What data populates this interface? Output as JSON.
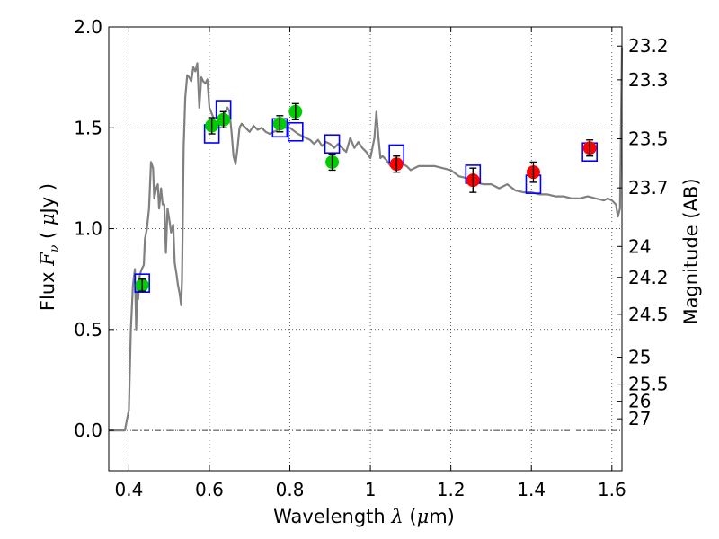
{
  "chart_data": {
    "type": "scatter",
    "xlabel": {
      "prefix": "Wavelength  ",
      "symbol": "λ",
      "unit_open": " (",
      "unit_mu": "μ",
      "unit_close": "m)"
    },
    "ylabel": {
      "prefix": "Flux  ",
      "symbol_f": "F",
      "symbol_sub": "ν",
      "unit_open": "  ( ",
      "unit_mu": "μ",
      "unit_close": "Jy )"
    },
    "y2label": "Magnitude (AB)",
    "xlim": [
      0.35,
      1.625
    ],
    "ylim": [
      -0.2,
      2.0
    ],
    "grid": true,
    "x_ticks": [
      {
        "value": 0.4,
        "label": "0.4"
      },
      {
        "value": 0.6,
        "label": "0.6"
      },
      {
        "value": 0.8,
        "label": "0.8"
      },
      {
        "value": 1.0,
        "label": "1"
      },
      {
        "value": 1.2,
        "label": "1.2"
      },
      {
        "value": 1.4,
        "label": "1.4"
      },
      {
        "value": 1.6,
        "label": "1.6"
      }
    ],
    "y_ticks": [
      {
        "value": 0.0,
        "label": "0.0"
      },
      {
        "value": 0.5,
        "label": "0.5"
      },
      {
        "value": 1.0,
        "label": "1.0"
      },
      {
        "value": 1.5,
        "label": "1.5"
      },
      {
        "value": 2.0,
        "label": "2.0"
      }
    ],
    "mag_ticks": [
      {
        "mag": 23.2,
        "label": "23.2"
      },
      {
        "mag": 23.3,
        "label": "23.3"
      },
      {
        "mag": 23.5,
        "label": "23.5"
      },
      {
        "mag": 23.7,
        "label": "23.7"
      },
      {
        "mag": 24.0,
        "label": "24"
      },
      {
        "mag": 24.2,
        "label": "24.2"
      },
      {
        "mag": 24.5,
        "label": "24.5"
      },
      {
        "mag": 25.0,
        "label": "25"
      },
      {
        "mag": 25.5,
        "label": "25.5"
      },
      {
        "mag": 26.0,
        "label": "26"
      },
      {
        "mag": 27.0,
        "label": "27"
      }
    ],
    "model_spectrum": {
      "color": "#808080",
      "x": [
        0.35,
        0.39,
        0.4,
        0.405,
        0.41,
        0.415,
        0.418,
        0.421,
        0.423,
        0.427,
        0.432,
        0.437,
        0.44,
        0.445,
        0.45,
        0.455,
        0.46,
        0.463,
        0.468,
        0.472,
        0.475,
        0.48,
        0.484,
        0.488,
        0.492,
        0.496,
        0.5,
        0.505,
        0.51,
        0.514,
        0.518,
        0.522,
        0.526,
        0.53,
        0.532,
        0.534,
        0.536,
        0.54,
        0.545,
        0.55,
        0.555,
        0.56,
        0.565,
        0.57,
        0.575,
        0.58,
        0.585,
        0.59,
        0.595,
        0.6,
        0.61,
        0.62,
        0.63,
        0.64,
        0.645,
        0.65,
        0.655,
        0.66,
        0.665,
        0.67,
        0.675,
        0.68,
        0.69,
        0.7,
        0.71,
        0.72,
        0.73,
        0.74,
        0.75,
        0.76,
        0.78,
        0.8,
        0.82,
        0.84,
        0.85,
        0.86,
        0.87,
        0.88,
        0.89,
        0.9,
        0.91,
        0.92,
        0.93,
        0.94,
        0.95,
        0.96,
        0.97,
        0.98,
        0.99,
        1.0,
        1.01,
        1.015,
        1.02,
        1.025,
        1.03,
        1.04,
        1.05,
        1.06,
        1.07,
        1.08,
        1.09,
        1.1,
        1.12,
        1.14,
        1.16,
        1.18,
        1.2,
        1.22,
        1.24,
        1.26,
        1.28,
        1.3,
        1.32,
        1.34,
        1.36,
        1.38,
        1.4,
        1.42,
        1.44,
        1.46,
        1.48,
        1.5,
        1.52,
        1.54,
        1.56,
        1.58,
        1.59,
        1.6,
        1.61,
        1.615,
        1.62,
        1.625
      ],
      "y": [
        0.0,
        0.0,
        0.1,
        0.5,
        0.72,
        0.8,
        0.5,
        0.72,
        0.65,
        0.77,
        0.8,
        0.82,
        0.95,
        1.0,
        1.1,
        1.33,
        1.3,
        1.15,
        1.2,
        1.22,
        1.1,
        1.2,
        1.12,
        1.12,
        0.88,
        1.1,
        1.05,
        0.98,
        1.02,
        0.83,
        0.78,
        0.72,
        0.68,
        0.62,
        0.75,
        1.05,
        1.4,
        1.65,
        1.76,
        1.75,
        1.73,
        1.8,
        1.78,
        1.82,
        1.6,
        1.75,
        1.73,
        1.72,
        1.74,
        1.6,
        1.55,
        1.5,
        1.55,
        1.58,
        1.6,
        1.58,
        1.48,
        1.36,
        1.32,
        1.4,
        1.5,
        1.52,
        1.5,
        1.48,
        1.51,
        1.49,
        1.5,
        1.48,
        1.47,
        1.48,
        1.5,
        1.5,
        1.47,
        1.45,
        1.44,
        1.42,
        1.44,
        1.41,
        1.43,
        1.42,
        1.4,
        1.42,
        1.4,
        1.38,
        1.45,
        1.4,
        1.43,
        1.4,
        1.38,
        1.35,
        1.45,
        1.58,
        1.45,
        1.35,
        1.36,
        1.34,
        1.31,
        1.31,
        1.3,
        1.32,
        1.31,
        1.29,
        1.31,
        1.31,
        1.31,
        1.3,
        1.29,
        1.26,
        1.25,
        1.23,
        1.22,
        1.22,
        1.2,
        1.22,
        1.19,
        1.18,
        1.18,
        1.17,
        1.17,
        1.16,
        1.16,
        1.15,
        1.15,
        1.16,
        1.15,
        1.14,
        1.15,
        1.14,
        1.12,
        1.06,
        1.1,
        1.9
      ]
    },
    "series": [
      {
        "name": "",
        "marker": "square",
        "color": "#0000ff",
        "x": [
          0.433,
          0.606,
          0.635,
          0.775,
          0.814,
          0.905,
          1.065,
          1.255,
          1.405,
          1.545
        ],
        "y": [
          0.73,
          1.47,
          1.59,
          1.5,
          1.48,
          1.42,
          1.37,
          1.27,
          1.22,
          1.38
        ]
      },
      {
        "name": "",
        "marker": "circle",
        "color": "#00cc00",
        "x": [
          0.433,
          0.606,
          0.635,
          0.775,
          0.814,
          0.905
        ],
        "y": [
          0.72,
          1.51,
          1.54,
          1.52,
          1.58,
          1.33
        ],
        "yerr": [
          0.03,
          0.04,
          0.04,
          0.04,
          0.04,
          0.04
        ]
      },
      {
        "name": "",
        "marker": "circle",
        "color": "#ff0000",
        "x": [
          1.065,
          1.255,
          1.405,
          1.545
        ],
        "y": [
          1.32,
          1.24,
          1.28,
          1.4
        ],
        "yerr": [
          0.04,
          0.06,
          0.05,
          0.04
        ]
      }
    ]
  }
}
